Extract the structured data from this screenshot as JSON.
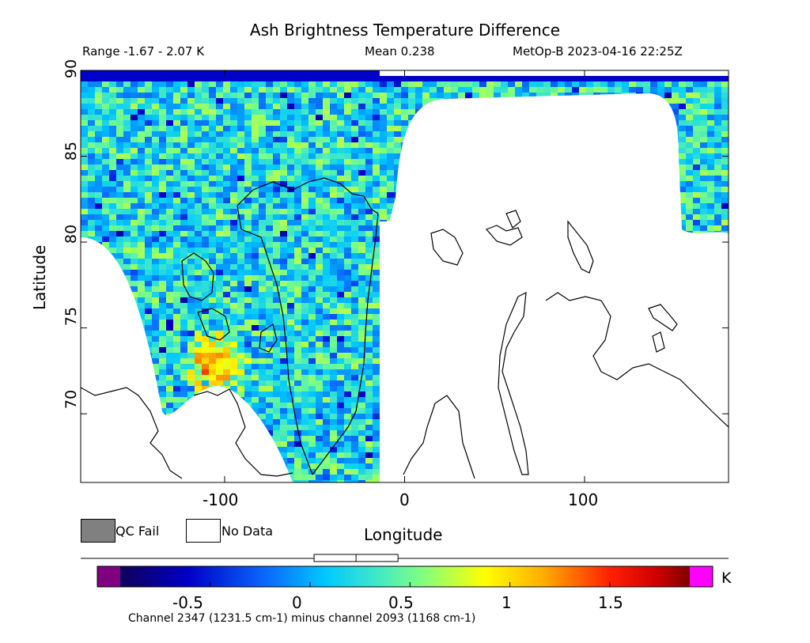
{
  "chart_data": {
    "type": "heatmap",
    "title": "Ash Brightness Temperature Difference",
    "range_text": "Range -1.67 - 2.07 K",
    "mean_text": "Mean 0.238",
    "satellite_text": "MetOp-B 2023-04-16 22:25Z",
    "xlabel": "Longitude",
    "ylabel": "Latitude",
    "xlim": [
      -180,
      180
    ],
    "ylim": [
      66,
      90
    ],
    "xticks": [
      "-100",
      "0",
      "100"
    ],
    "xtick_values": [
      -100,
      0,
      100
    ],
    "yticks": [
      "70",
      "75",
      "80",
      "85",
      "90"
    ],
    "ytick_values": [
      70,
      75,
      80,
      85,
      90
    ],
    "range": [
      -1.67,
      2.07
    ],
    "mean": 0.238,
    "legend": [
      {
        "label": "QC Fail",
        "color": "#808080"
      },
      {
        "label": "No Data",
        "color": "#ffffff"
      }
    ],
    "colorbar": {
      "unit": "K",
      "ticks": [
        "-0.5",
        "0",
        "0.5",
        "1",
        "1.5"
      ],
      "tick_values": [
        -0.5,
        0,
        0.5,
        1,
        1.5
      ],
      "min": -0.95,
      "max": 1.9,
      "low_color": "#800080",
      "high_color": "#ff00ff",
      "box_range": [
        0.02,
        0.44
      ],
      "box_median": 0.23
    },
    "channel_text": "Channel 2347 (1231.5 cm-1) minus channel 2093 (1168 cm-1)"
  }
}
